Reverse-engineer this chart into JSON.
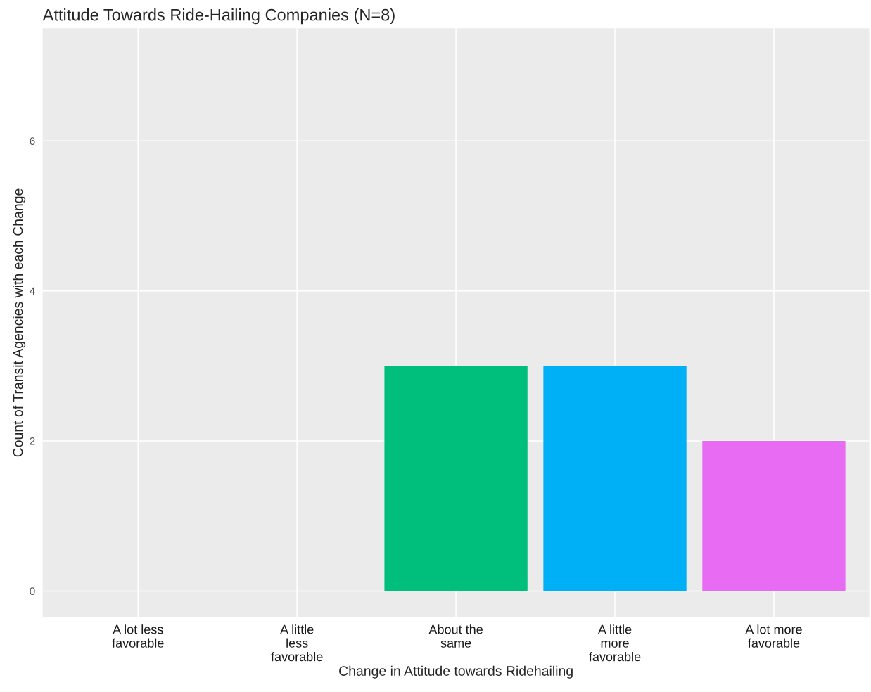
{
  "chart_data": {
    "type": "bar",
    "title": "Attitude Towards Ride-Hailing Companies (N=8)",
    "xlabel": "Change in Attitude towards Ridehailing",
    "ylabel": "Count of Transit Agencies with each Change",
    "categories": [
      "A lot less\nfavorable",
      "A little\nless\nfavorable",
      "About the\nsame",
      "A little\nmore\nfavorable",
      "A lot more\nfavorable"
    ],
    "values": [
      0,
      0,
      3,
      3,
      2
    ],
    "colors": [
      null,
      null,
      "#00bf7d",
      "#00b0f6",
      "#e76bf3"
    ],
    "ylim": [
      -0.35,
      7.5
    ],
    "yticks": [
      0,
      2,
      4,
      6
    ],
    "grid": true
  }
}
